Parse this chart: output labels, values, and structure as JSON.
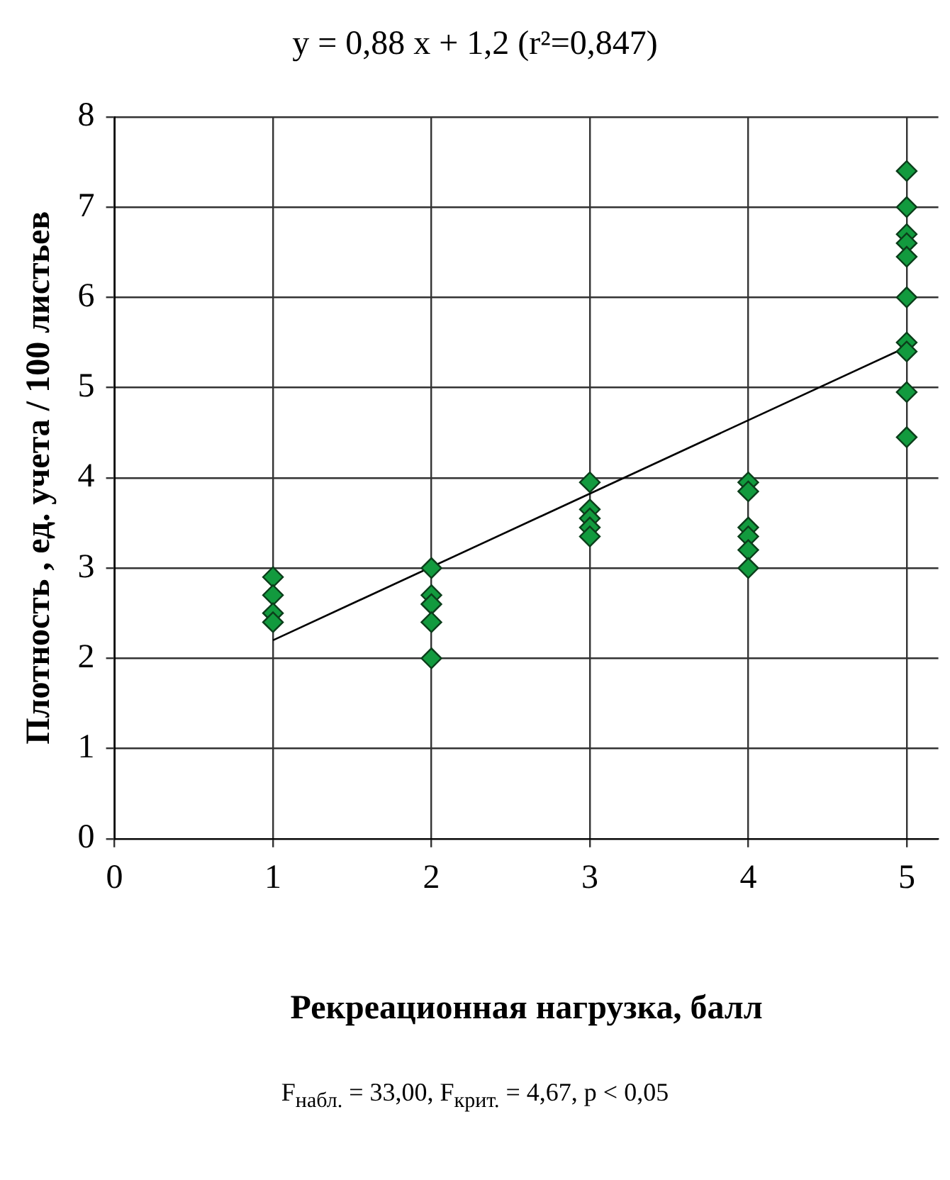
{
  "chart_data": {
    "type": "scatter",
    "title": "y = 0,88 x + 1,2 (r²=0,847)",
    "xlabel": "Рекреационная нагрузка, балл",
    "ylabel": "Плотность , ед. учета / 100 листьев",
    "annotations": [
      "F$_{набл.}$ = 33,00, F$_{крит.}$ = 4,67, p < 0,05"
    ],
    "xlim": [
      0,
      5.2
    ],
    "xticks": [
      0,
      1,
      2,
      3,
      4,
      5
    ],
    "ylim": [
      0,
      8
    ],
    "yticks": [
      0,
      1,
      2,
      3,
      4,
      5,
      6,
      7,
      8
    ],
    "grid": true,
    "legend": false,
    "marker": "diamond",
    "series": [
      {
        "color": "#129a3e",
        "x": [
          1,
          1,
          1,
          1,
          2,
          2,
          2,
          2,
          2,
          3,
          3,
          3,
          3,
          3,
          4,
          4,
          4,
          4,
          4,
          4,
          5,
          5,
          5,
          5,
          5,
          5,
          5,
          5,
          5,
          5
        ],
        "values": [
          2.9,
          2.7,
          2.5,
          2.4,
          3.0,
          2.7,
          2.6,
          2.4,
          2.0,
          3.95,
          3.65,
          3.55,
          3.45,
          3.35,
          3.95,
          3.85,
          3.45,
          3.35,
          3.2,
          3.0,
          7.4,
          7.0,
          6.7,
          6.6,
          6.45,
          6.0,
          5.5,
          5.4,
          4.95,
          4.45
        ]
      },
      {
        "type": "line",
        "color": "#000000",
        "x": [
          1,
          5
        ],
        "values": [
          2.2,
          5.45
        ],
        "marker": "none"
      }
    ]
  }
}
